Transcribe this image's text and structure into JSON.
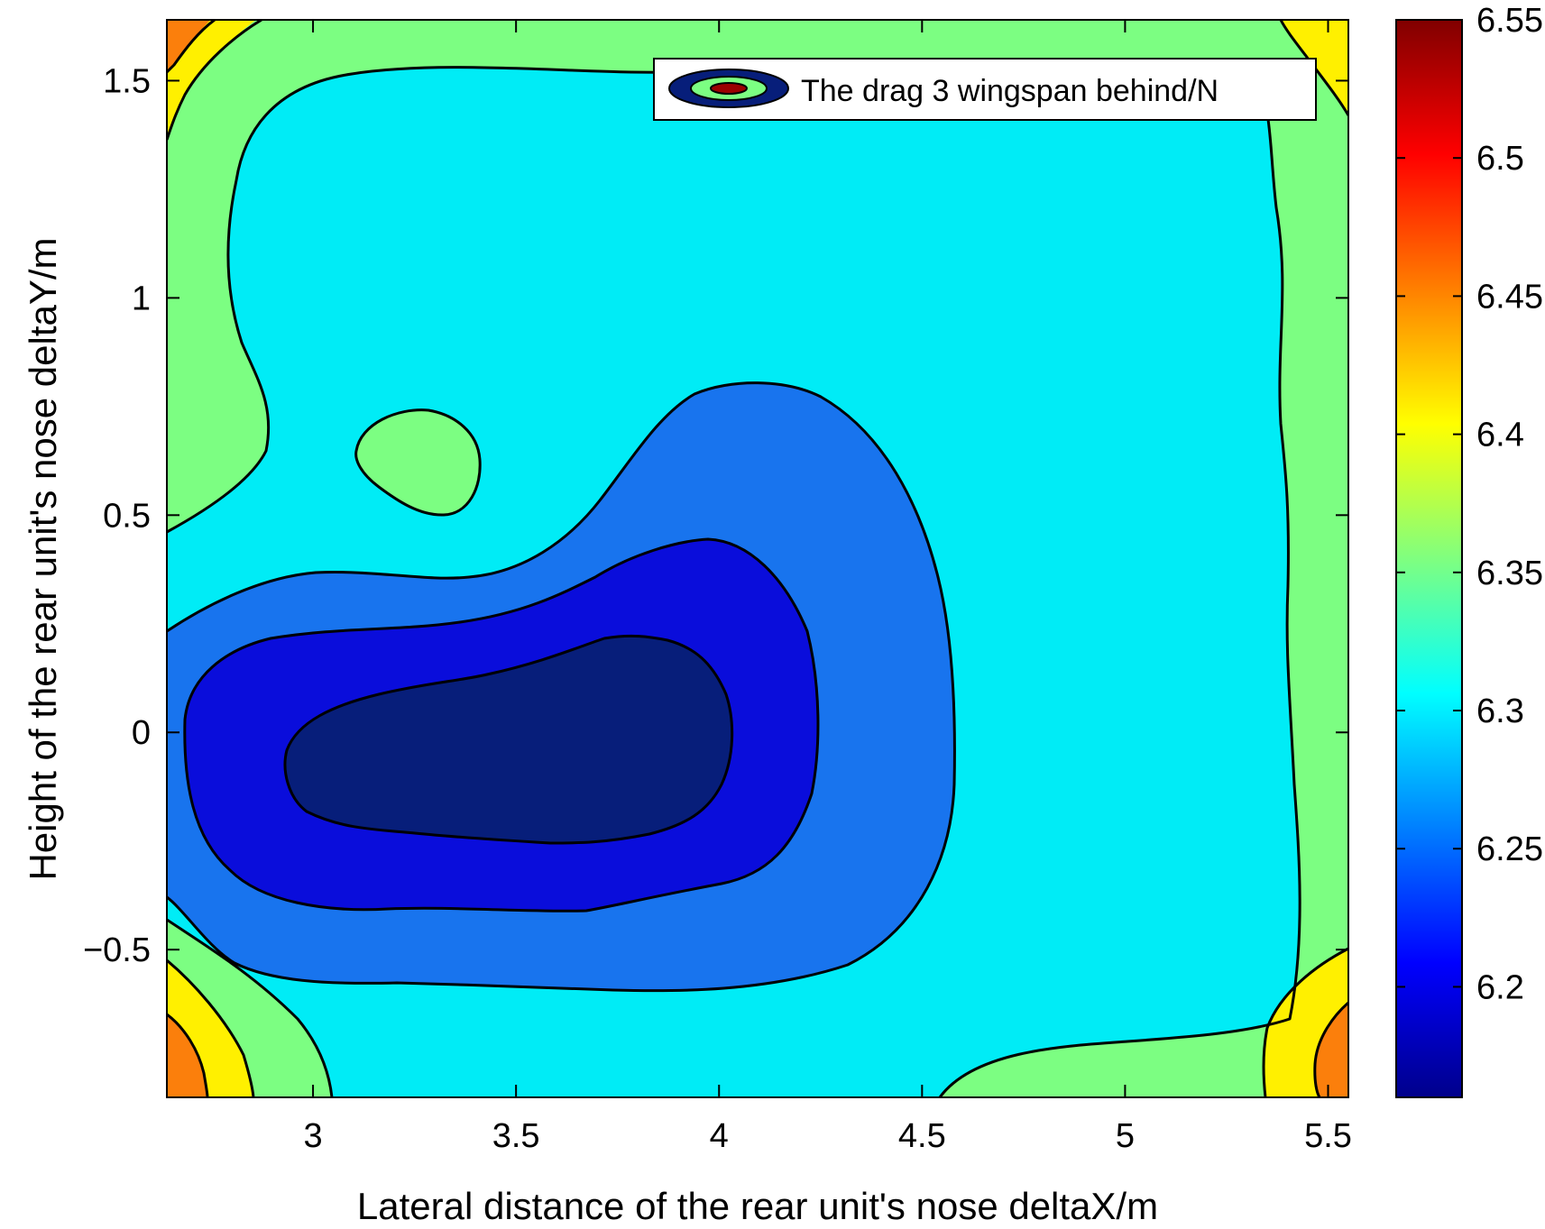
{
  "chart_data": {
    "type": "contourf",
    "xlabel": "Lateral distance of the rear unit's nose deltaX/m",
    "ylabel": "Height of the rear unit's nose deltaY/m",
    "xlim": [
      2.64,
      5.55
    ],
    "ylim": [
      -0.84,
      1.64
    ],
    "x_ticks": [
      "3",
      "3.5",
      "4",
      "4.5",
      "5",
      "5.5"
    ],
    "y_ticks": [
      "−0.5",
      "0",
      "0.5",
      "1",
      "1.5"
    ],
    "colorbar": {
      "colormap": "jet",
      "clim": [
        6.16,
        6.55
      ],
      "ticks": [
        "6.2",
        "6.25",
        "6.3",
        "6.35",
        "6.4",
        "6.45",
        "6.5",
        "6.55"
      ]
    },
    "legend": {
      "label": "The drag 3 wingspan behind/N",
      "position": "top-right"
    },
    "contour_levels": [
      6.2,
      6.25,
      6.3,
      6.35,
      6.4,
      6.45
    ],
    "level_colors": {
      "below_6.2": "#071e7a",
      "6.2-6.25": "#0a0ddb",
      "6.25-6.3": "#1874ee",
      "6.3-6.35": "#00ecf6",
      "6.35-6.4": "#7cfe82",
      "6.4-6.45": "#fff000",
      "6.45-6.5": "#fb7f0c"
    },
    "features": [
      {
        "type": "minimum",
        "x": 3.5,
        "y": -0.05,
        "z": 6.18
      },
      {
        "type": "local_bump",
        "x": 3.28,
        "y": 0.63,
        "z": 6.36
      },
      {
        "type": "corner_max",
        "x": 2.66,
        "y": 1.62,
        "z": 6.44
      },
      {
        "type": "corner_max",
        "x": 5.53,
        "y": 1.62,
        "z": 6.42
      },
      {
        "type": "corner_max",
        "x": 2.66,
        "y": -0.82,
        "z": 6.47
      },
      {
        "type": "corner_max",
        "x": 5.53,
        "y": -0.82,
        "z": 6.47
      }
    ]
  }
}
